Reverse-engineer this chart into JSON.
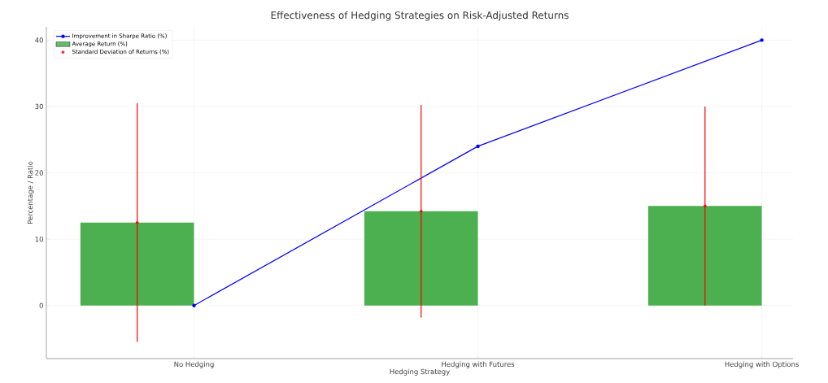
{
  "chart_data": {
    "type": "bar",
    "title": "Effectiveness of Hedging Strategies on Risk-Adjusted Returns",
    "xlabel": "Hedging Strategy",
    "ylabel": "Percentage / Ratio",
    "categories": [
      "No Hedging",
      "Hedging with Futures",
      "Hedging with Options"
    ],
    "series": [
      {
        "name": "Improvement in Sharpe Ratio (%)",
        "type": "line",
        "color": "#0000ff",
        "marker": "circle",
        "values": [
          0,
          24,
          40
        ]
      },
      {
        "name": "Average Return (%)",
        "color": "#4caf50",
        "values": [
          12.5,
          14.2,
          15
        ]
      },
      {
        "name": "Standard Deviation of Returns (%)",
        "type": "scatter",
        "color": "#ff0000",
        "marker": "circle",
        "x": [
          "No Hedging",
          "Hedging with Futures",
          "Hedging with Options"
        ],
        "values": [
          12.5,
          14.2,
          15
        ],
        "errors": [
          18,
          16,
          15
        ]
      }
    ],
    "ylim": [
      -8,
      42
    ],
    "yticks": [
      0,
      10,
      20,
      30,
      40
    ],
    "grid": true,
    "legend": "top left"
  }
}
